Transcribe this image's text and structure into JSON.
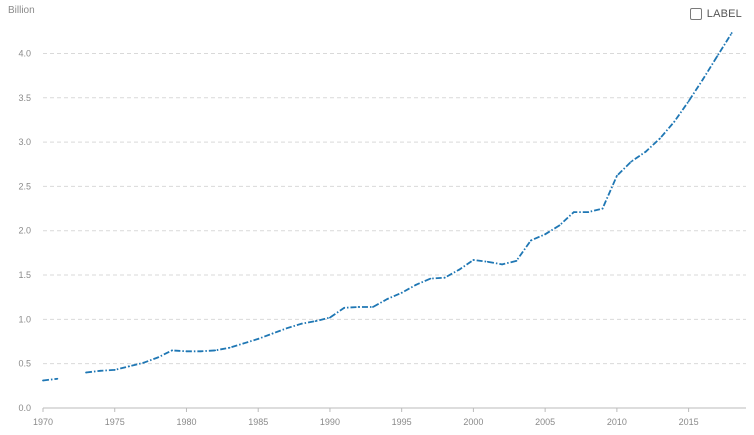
{
  "legend": {
    "label": "LABEL"
  },
  "colors": {
    "line": "#1f77b4",
    "grid": "#d9d9d9",
    "axis": "#bbbbbb"
  },
  "chart_data": {
    "type": "line",
    "ylabel": "Billion",
    "xlim": [
      1970,
      2019
    ],
    "ylim": [
      0,
      4.4
    ],
    "grid": true,
    "legend_position": "top-right",
    "x_ticks": [
      1970,
      1975,
      1980,
      1985,
      1990,
      1995,
      2000,
      2005,
      2010,
      2015
    ],
    "y_ticks": [
      "0.0",
      "0.5",
      "1.0",
      "1.5",
      "2.0",
      "2.5",
      "3.0",
      "3.5",
      "4.0"
    ],
    "series": [
      {
        "values": [
          [
            1970,
            0.31
          ],
          [
            1971,
            0.33
          ],
          [
            1972,
            null
          ],
          [
            1973,
            0.4
          ],
          [
            1974,
            0.42
          ],
          [
            1975,
            0.43
          ],
          [
            1976,
            0.47
          ],
          [
            1977,
            0.51
          ],
          [
            1978,
            0.57
          ],
          [
            1979,
            0.65
          ],
          [
            1980,
            0.64
          ],
          [
            1981,
            0.64
          ],
          [
            1982,
            0.65
          ],
          [
            1983,
            0.68
          ],
          [
            1984,
            0.73
          ],
          [
            1985,
            0.78
          ],
          [
            1986,
            0.84
          ],
          [
            1987,
            0.9
          ],
          [
            1988,
            0.95
          ],
          [
            1989,
            0.98
          ],
          [
            1990,
            1.02
          ],
          [
            1991,
            1.13
          ],
          [
            1992,
            1.14
          ],
          [
            1993,
            1.14
          ],
          [
            1994,
            1.23
          ],
          [
            1995,
            1.3
          ],
          [
            1996,
            1.39
          ],
          [
            1997,
            1.46
          ],
          [
            1998,
            1.47
          ],
          [
            1999,
            1.56
          ],
          [
            2000,
            1.67
          ],
          [
            2001,
            1.65
          ],
          [
            2002,
            1.62
          ],
          [
            2003,
            1.66
          ],
          [
            2004,
            1.89
          ],
          [
            2005,
            1.96
          ],
          [
            2006,
            2.06
          ],
          [
            2007,
            2.21
          ],
          [
            2008,
            2.21
          ],
          [
            2009,
            2.25
          ],
          [
            2010,
            2.62
          ],
          [
            2011,
            2.78
          ],
          [
            2012,
            2.89
          ],
          [
            2013,
            3.04
          ],
          [
            2014,
            3.23
          ],
          [
            2015,
            3.46
          ],
          [
            2016,
            3.71
          ],
          [
            2017,
            3.97
          ],
          [
            2018,
            4.23
          ]
        ]
      }
    ]
  }
}
